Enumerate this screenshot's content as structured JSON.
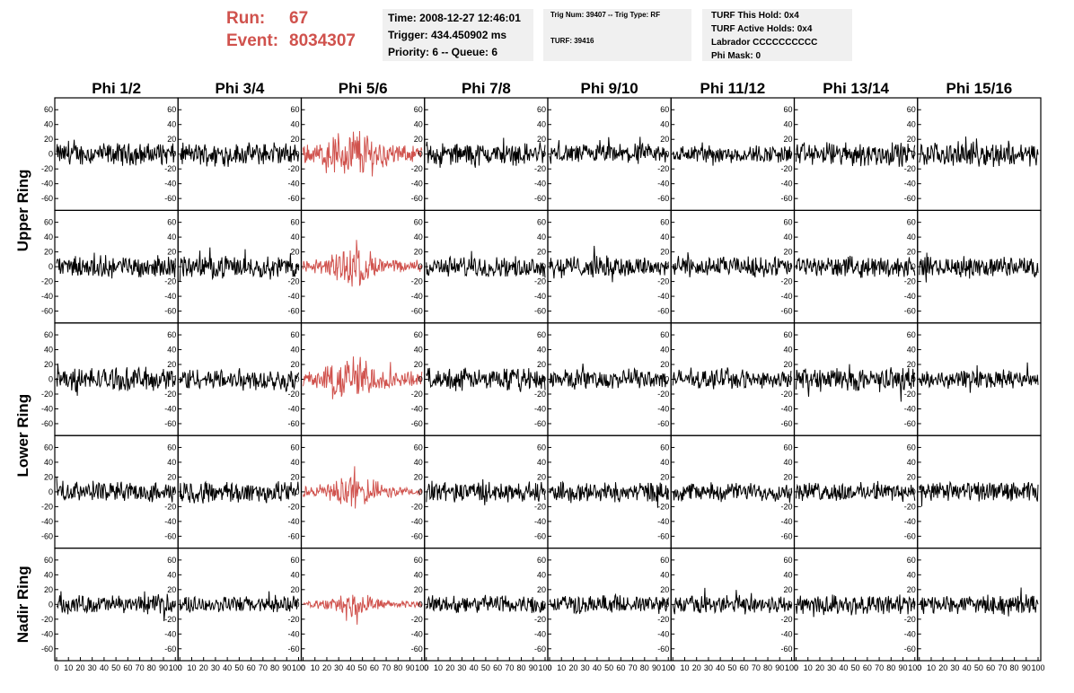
{
  "header": {
    "run_label": "Run:",
    "run_value": "67",
    "event_label": "Event:",
    "event_value": "8034307",
    "time_text": "Time: 2008-12-27 12:46:01",
    "trigger_text": "Trigger: 434.450902 ms",
    "priority_text": "Priority: 6 -- Queue: 6",
    "trig_num_text": "Trig Num: 39407 -- Trig Type: RF",
    "turf_text": "TURF: 39416",
    "turf_hold_text": "TURF This Hold: 0x4",
    "turf_active_text": "TURF Active Holds: 0x4",
    "labrador_text": "Labrador CCCCCCCCCC",
    "phi_mask_text": "Phi Mask: 0"
  },
  "chart_data": {
    "type": "line",
    "columns": [
      "Phi 1/2",
      "Phi 3/4",
      "Phi 5/6",
      "Phi 7/8",
      "Phi 9/10",
      "Phi 11/12",
      "Phi 13/14",
      "Phi 15/16"
    ],
    "row_labels": [
      "Upper Ring",
      "Lower Ring",
      "Nadir Ring"
    ],
    "y_ticks": [
      60,
      40,
      20,
      0,
      -20,
      -40,
      -60
    ],
    "y_range": [
      -70,
      70
    ],
    "x_ticks": [
      "0",
      "10",
      "20",
      "30",
      "40",
      "50",
      "60",
      "70",
      "80",
      "90",
      "100"
    ],
    "x_range": [
      0,
      100
    ],
    "highlight_column": "Phi 5/6",
    "colors": {
      "trace": "#000000",
      "triggered_trace": "#d0524d",
      "title_red": "#d0524d",
      "info_bg": "#f0f0f0"
    },
    "panel_rows": 5,
    "row_amplitudes": [
      [
        12,
        12,
        25,
        12,
        11,
        10,
        13,
        13
      ],
      [
        12,
        12,
        18,
        11,
        12,
        11,
        11,
        11
      ],
      [
        13,
        12,
        22,
        12,
        11,
        10,
        13,
        10
      ],
      [
        11,
        12,
        15,
        11,
        11,
        10,
        10,
        11
      ],
      [
        10,
        9,
        10,
        10,
        10,
        10,
        11,
        10
      ]
    ]
  }
}
